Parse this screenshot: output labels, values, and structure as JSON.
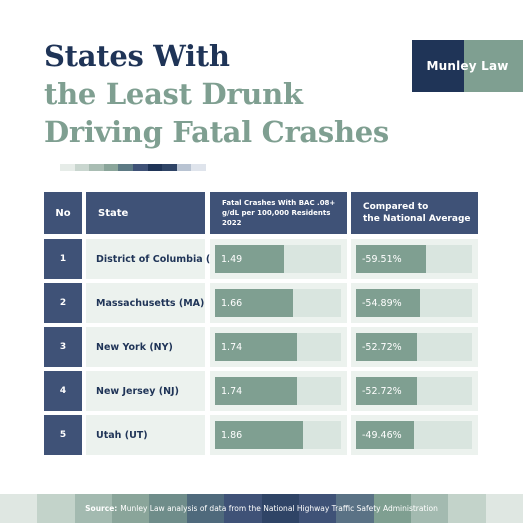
{
  "title": {
    "line1": "States With",
    "line2": "the Least Drunk",
    "line3": "Driving Fatal Crashes"
  },
  "logo": {
    "text": "Munley Law"
  },
  "colors": {
    "navy": "#1f3457",
    "header_blue": "#3f5277",
    "sage": "#7f9f91",
    "row_bg": "#ecf2ee",
    "bar_track": "#d9e5df"
  },
  "table": {
    "headers": {
      "no": "No",
      "state": "State",
      "fatal_line1": "Fatal Crashes With BAC .08+",
      "fatal_line2": "g/dL per 100,000 Residents 2022",
      "compared_line1": "Compared to",
      "compared_line2": "the National Average"
    }
  },
  "chart_data": {
    "type": "table",
    "columns": [
      "No",
      "State",
      "Fatal Crashes With BAC .08+ g/dL per 100,000 Residents 2022",
      "Compared to the National Average"
    ],
    "rows": [
      {
        "no": "1",
        "state": "District of Columbia (DC)",
        "fatal": "1.49",
        "compared": "-59.51%",
        "fatal_bar": 0.55,
        "compared_bar": 0.6
      },
      {
        "no": "2",
        "state": "Massachusetts (MA)",
        "fatal": "1.66",
        "compared": "-54.89%",
        "fatal_bar": 0.62,
        "compared_bar": 0.55
      },
      {
        "no": "3",
        "state": "New York (NY)",
        "fatal": "1.74",
        "compared": "-52.72%",
        "fatal_bar": 0.65,
        "compared_bar": 0.53
      },
      {
        "no": "4",
        "state": "New Jersey (NJ)",
        "fatal": "1.74",
        "compared": "-52.72%",
        "fatal_bar": 0.65,
        "compared_bar": 0.53
      },
      {
        "no": "5",
        "state": "Utah (UT)",
        "fatal": "1.86",
        "compared": "-49.46%",
        "fatal_bar": 0.7,
        "compared_bar": 0.5
      }
    ]
  },
  "footer": {
    "source_label": "Source:",
    "source_text": "Munley Law analysis of data from the National Highway Traffic Safety Administration"
  }
}
